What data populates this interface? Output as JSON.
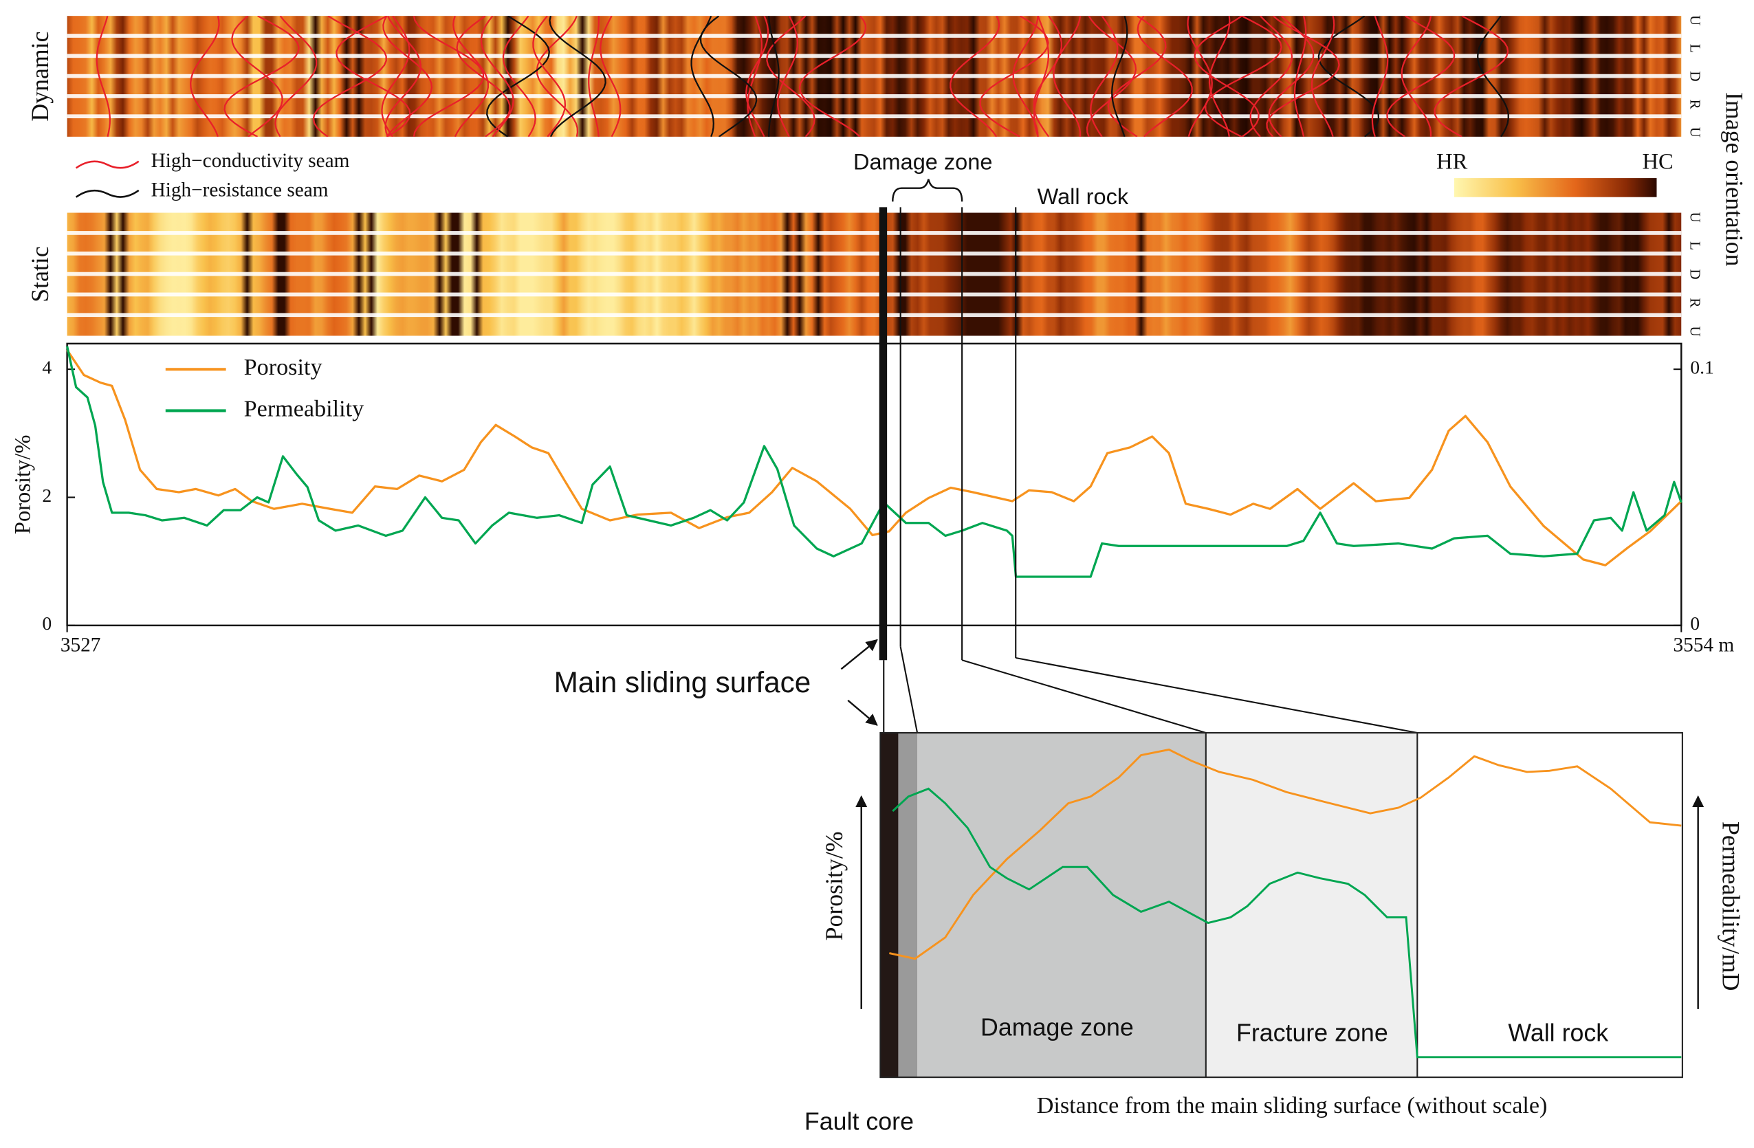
{
  "chart_data": {
    "type": "line",
    "ylabel": "Porosity/%",
    "xlim": [
      3527,
      3554
    ],
    "xticks": [
      3527,
      {
        "value": 3554,
        "label": "3554 m"
      }
    ],
    "ylim": [
      0,
      4.4
    ],
    "yticks": [
      0,
      2,
      4
    ],
    "y2lim": [
      0,
      0.11
    ],
    "y2ticks": [
      0,
      0.1
    ],
    "legend": "upper left",
    "series": [
      {
        "name": "Porosity",
        "color": "#f7931e",
        "x": [
          3527.0,
          3527.28,
          3527.56,
          3527.75,
          3527.97,
          3528.22,
          3528.5,
          3528.87,
          3529.15,
          3529.53,
          3529.81,
          3530.09,
          3530.46,
          3530.93,
          3531.4,
          3531.77,
          3532.15,
          3532.52,
          3532.89,
          3533.27,
          3533.64,
          3533.92,
          3534.17,
          3534.49,
          3534.77,
          3535.05,
          3535.33,
          3535.61,
          3536.08,
          3536.54,
          3537.1,
          3537.57,
          3538.04,
          3538.41,
          3538.79,
          3539.13,
          3539.54,
          3540.1,
          3540.47,
          3540.75,
          3541.03,
          3541.41,
          3541.78,
          3542.15,
          3542.81,
          3543.09,
          3543.47,
          3543.84,
          3544.12,
          3544.4,
          3544.78,
          3545.15,
          3545.43,
          3545.71,
          3546.09,
          3546.46,
          3546.84,
          3547.12,
          3547.58,
          3547.96,
          3548.52,
          3548.89,
          3549.45,
          3549.83,
          3550.11,
          3550.39,
          3550.76,
          3551.14,
          3551.7,
          3552.36,
          3552.73,
          3553.1,
          3553.48,
          3554.0
        ],
        "values": [
          4.3,
          3.91,
          3.79,
          3.74,
          3.21,
          2.43,
          2.13,
          2.08,
          2.13,
          2.03,
          2.13,
          1.94,
          1.82,
          1.9,
          1.82,
          1.76,
          2.17,
          2.13,
          2.34,
          2.25,
          2.43,
          2.86,
          3.13,
          2.95,
          2.78,
          2.69,
          2.25,
          1.82,
          1.64,
          1.73,
          1.76,
          1.52,
          1.69,
          1.76,
          2.08,
          2.46,
          2.25,
          1.82,
          1.41,
          1.47,
          1.76,
          1.99,
          2.15,
          2.08,
          1.94,
          2.11,
          2.08,
          1.94,
          2.17,
          2.69,
          2.78,
          2.95,
          2.69,
          1.9,
          1.82,
          1.73,
          1.9,
          1.82,
          2.13,
          1.82,
          2.22,
          1.94,
          1.99,
          2.43,
          3.04,
          3.27,
          2.86,
          2.17,
          1.55,
          1.03,
          0.94,
          1.21,
          1.47,
          1.94
        ]
      },
      {
        "name": "Permeability",
        "color": "#00a651",
        "axis": "y2",
        "x": [
          3527.0,
          3527.15,
          3527.34,
          3527.47,
          3527.6,
          3527.75,
          3528.03,
          3528.31,
          3528.59,
          3528.96,
          3529.34,
          3529.62,
          3529.9,
          3530.18,
          3530.37,
          3530.61,
          3530.84,
          3531.02,
          3531.21,
          3531.49,
          3531.87,
          3532.33,
          3532.61,
          3532.99,
          3533.27,
          3533.55,
          3533.83,
          3534.11,
          3534.39,
          3534.86,
          3535.23,
          3535.61,
          3535.79,
          3536.08,
          3536.36,
          3536.73,
          3537.1,
          3537.48,
          3537.76,
          3538.04,
          3538.32,
          3538.66,
          3538.88,
          3539.16,
          3539.54,
          3539.82,
          3540.29,
          3540.66,
          3541.03,
          3541.41,
          3541.69,
          3541.97,
          3542.31,
          3542.72,
          3542.81,
          3542.87,
          3544.12,
          3544.31,
          3544.59,
          3545.53,
          3546.46,
          3547.4,
          3547.68,
          3547.96,
          3548.24,
          3548.52,
          3549.27,
          3549.83,
          3550.2,
          3550.76,
          3551.14,
          3551.7,
          3552.26,
          3552.54,
          3552.82,
          3553.01,
          3553.2,
          3553.42,
          3553.72,
          3553.88,
          3554.0
        ],
        "values": [
          0.109,
          0.093,
          0.089,
          0.078,
          0.056,
          0.044,
          0.044,
          0.043,
          0.041,
          0.042,
          0.039,
          0.045,
          0.045,
          0.05,
          0.048,
          0.066,
          0.059,
          0.054,
          0.041,
          0.037,
          0.039,
          0.035,
          0.037,
          0.05,
          0.042,
          0.041,
          0.032,
          0.039,
          0.044,
          0.042,
          0.043,
          0.04,
          0.055,
          0.062,
          0.043,
          0.041,
          0.039,
          0.042,
          0.045,
          0.041,
          0.048,
          0.07,
          0.061,
          0.039,
          0.03,
          0.027,
          0.032,
          0.048,
          0.04,
          0.04,
          0.035,
          0.037,
          0.04,
          0.037,
          0.035,
          0.019,
          0.019,
          0.032,
          0.031,
          0.031,
          0.031,
          0.031,
          0.033,
          0.044,
          0.032,
          0.031,
          0.032,
          0.03,
          0.034,
          0.035,
          0.028,
          0.027,
          0.028,
          0.041,
          0.042,
          0.037,
          0.052,
          0.037,
          0.043,
          0.056,
          0.048
        ]
      }
    ]
  },
  "image_logs": {
    "panels": [
      {
        "name": "Dynamic",
        "orientation": [
          "U",
          "L",
          "D",
          "R",
          "U"
        ]
      },
      {
        "name": "Static",
        "orientation": [
          "U",
          "L",
          "D",
          "R",
          "U"
        ]
      }
    ],
    "orientation_label": "Image orientation",
    "legend": [
      {
        "name": "High−conductivity seam",
        "color": "#e8202a"
      },
      {
        "name": "High−resistance seam",
        "color": "#111111"
      }
    ],
    "colorbar": {
      "low": "HR",
      "high": "HC"
    }
  },
  "annotations": {
    "damage_zone": "Damage zone",
    "wall_rock": "Wall rock",
    "main_sliding_surface": "Main sliding surface",
    "fault_core": "Fault core"
  },
  "schematic": {
    "zones": [
      "Damage zone",
      "Fracture zone",
      "Wall rock"
    ],
    "left_axis": "Porosity/%",
    "right_axis": "Permeability/mD",
    "xlabel": "Distance from the main sliding surface (without scale)"
  }
}
